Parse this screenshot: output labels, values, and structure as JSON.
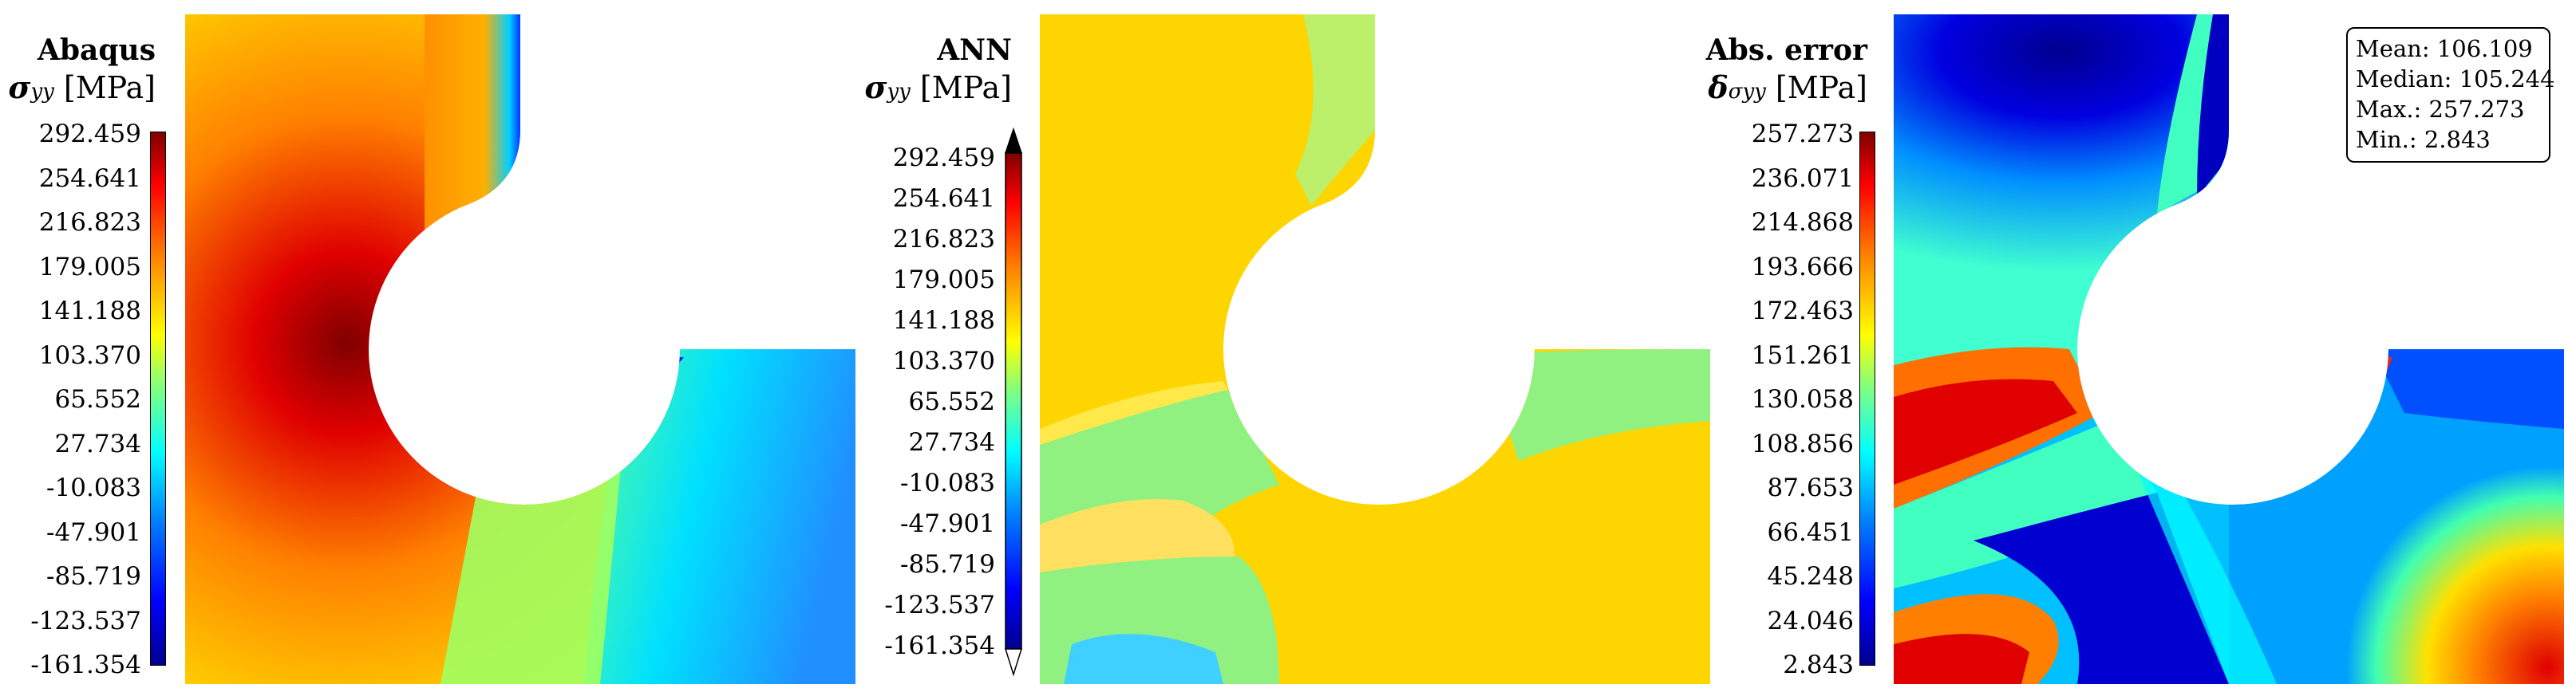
{
  "panels": [
    {
      "title": "Abaqus",
      "quantity": {
        "symbol": "σ",
        "subscript": "yy",
        "unit": "[MPa]"
      },
      "ticks": [
        "292.459",
        "254.641",
        "216.823",
        "179.005",
        "141.188",
        "103.370",
        "65.552",
        "27.734",
        "-10.083",
        "-47.901",
        "-85.719",
        "-123.537",
        "-161.354"
      ]
    },
    {
      "title": "ANN",
      "quantity": {
        "symbol": "σ",
        "subscript": "yy",
        "unit": "[MPa]"
      },
      "ticks": [
        "292.459",
        "254.641",
        "216.823",
        "179.005",
        "141.188",
        "103.370",
        "65.552",
        "27.734",
        "-10.083",
        "-47.901",
        "-85.719",
        "-123.537",
        "-161.354"
      ]
    },
    {
      "title": "Abs. error",
      "quantity": {
        "symbol": "δ",
        "subscript": "σyy",
        "unit": "[MPa]"
      },
      "ticks": [
        "257.273",
        "236.071",
        "214.868",
        "193.666",
        "172.463",
        "151.261",
        "130.058",
        "108.856",
        "87.653",
        "66.451",
        "45.248",
        "24.046",
        "2.843"
      ]
    }
  ],
  "stats": {
    "mean": "Mean: 106.109",
    "median": "Median: 105.244",
    "max": "Max.: 257.273",
    "min": "Min.: 2.843"
  },
  "colormap": [
    "#00008f",
    "#0000ff",
    "#0080ff",
    "#00ffff",
    "#80ff80",
    "#ffff00",
    "#ff8000",
    "#ff0000",
    "#800000"
  ]
}
